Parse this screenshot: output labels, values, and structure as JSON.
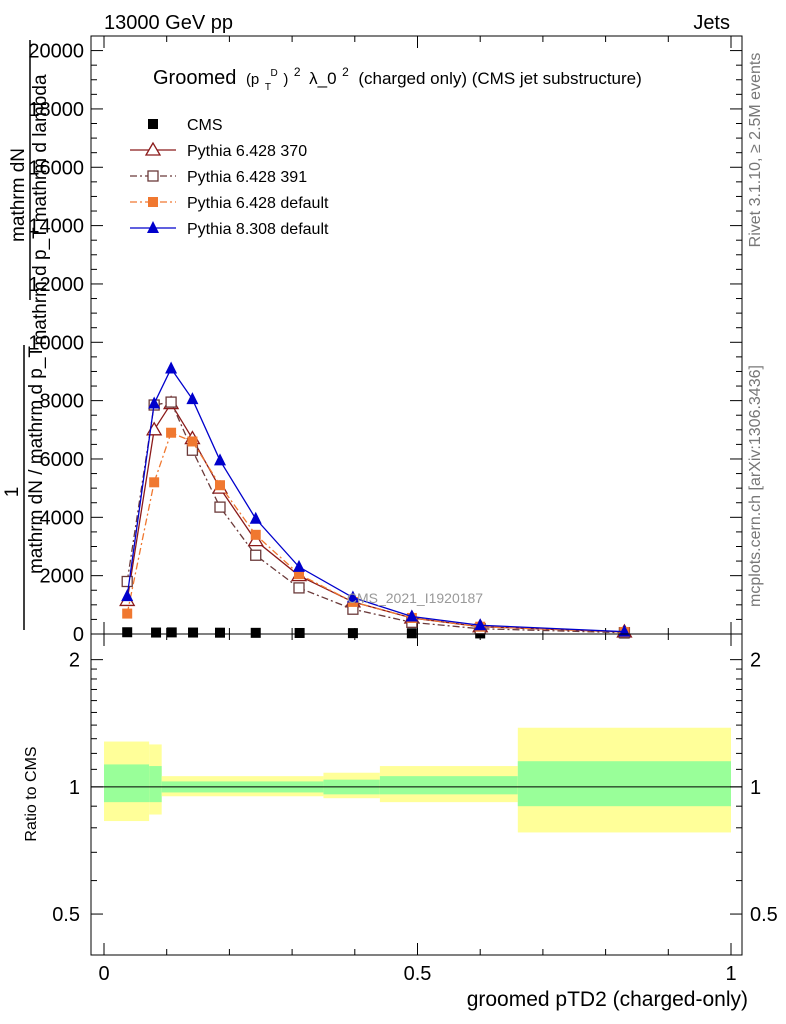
{
  "header": {
    "energy_label": "13000 GeV pp",
    "category_label": "Jets",
    "rivet_label": "Rivet 3.1.10, ≥ 2.5M events",
    "mcplots_label": "mcplots.cern.ch [arXiv:1306.3436]",
    "analysis_id": "CMS_2021_I1920187"
  },
  "chart_data": [
    {
      "type": "line",
      "title": "Groomed (p_T^D)^2 λ_0^2  (charged only) (CMS jet substructure)",
      "title_parts": {
        "lead": "Groomed",
        "p": "(p",
        "sub": "T",
        "sup": "D",
        "close": ")",
        "exp1": "2",
        "lambda": "λ_0",
        "exp2": "2",
        "tail": " (charged only) (CMS jet substructure)"
      },
      "ylabel_lines": [
        "mathrm dN",
        "mathrm d p_T mathrm d lambda",
        "1",
        "mathrm dN / mathrm d p_T"
      ],
      "xlim": [
        0,
        1
      ],
      "ylim": [
        0,
        20500
      ],
      "y_ticks": [
        0,
        2000,
        4000,
        6000,
        8000,
        10000,
        12000,
        14000,
        16000,
        18000,
        20000
      ],
      "y_tick_labels": [
        "0",
        "2000",
        "4000",
        "6000",
        "8000",
        "10000",
        "12000",
        "14000",
        "16000",
        "18000",
        "20000"
      ],
      "legend_position": "top-left",
      "series": [
        {
          "name": "CMS",
          "color": "#000000",
          "marker": "square-filled",
          "line": "none",
          "x": [
            0.037,
            0.083,
            0.108,
            0.142,
            0.185,
            0.242,
            0.312,
            0.397,
            0.491,
            0.6,
            0.83
          ],
          "values": [
            60,
            50,
            55,
            50,
            45,
            40,
            35,
            30,
            25,
            20,
            15
          ]
        },
        {
          "name": "Pythia 6.428 370",
          "color": "#8b1a1a",
          "marker": "triangle-open",
          "line": "solid",
          "x": [
            0.037,
            0.08,
            0.107,
            0.141,
            0.185,
            0.242,
            0.311,
            0.397,
            0.491,
            0.6,
            0.83
          ],
          "values": [
            1150,
            7000,
            7900,
            6700,
            5000,
            3200,
            2000,
            1100,
            550,
            250,
            70
          ]
        },
        {
          "name": "Pythia 6.428 391",
          "color": "#6b3a3a",
          "marker": "square-open",
          "line": "dashdot",
          "x": [
            0.037,
            0.08,
            0.107,
            0.141,
            0.185,
            0.242,
            0.311,
            0.397,
            0.491,
            0.6,
            0.83
          ],
          "values": [
            1800,
            7850,
            7950,
            6300,
            4350,
            2700,
            1580,
            850,
            400,
            180,
            45
          ]
        },
        {
          "name": "Pythia 6.428 default",
          "color": "#f07830",
          "marker": "square-filled",
          "line": "dashdot",
          "x": [
            0.037,
            0.08,
            0.107,
            0.141,
            0.185,
            0.242,
            0.311,
            0.397,
            0.491,
            0.6,
            0.83
          ],
          "values": [
            700,
            5200,
            6900,
            6600,
            5100,
            3400,
            2050,
            1100,
            550,
            250,
            70
          ]
        },
        {
          "name": "Pythia 8.308 default",
          "color": "#0000cc",
          "marker": "triangle-filled",
          "line": "solid",
          "x": [
            0.037,
            0.08,
            0.107,
            0.141,
            0.185,
            0.242,
            0.311,
            0.397,
            0.491,
            0.6,
            0.83
          ],
          "values": [
            1300,
            7900,
            9100,
            8050,
            5950,
            3950,
            2300,
            1250,
            600,
            300,
            80
          ]
        }
      ]
    },
    {
      "type": "area",
      "ylabel": "Ratio to CMS",
      "xlabel": "groomed pTD2 (charged-only)",
      "xlim": [
        0,
        1
      ],
      "ylim": [
        0.4,
        2.3
      ],
      "y_scale": "log",
      "y_ticks": [
        0.5,
        1,
        2
      ],
      "y_tick_labels": [
        "0.5",
        "1",
        "2"
      ],
      "x_ticks": [
        0,
        0.5,
        1
      ],
      "x_tick_labels": [
        "0",
        "0.5",
        "1"
      ],
      "bins": [
        {
          "x0": 0.0,
          "x1": 0.072,
          "stat_lo": 0.92,
          "stat_hi": 1.13,
          "tot_lo": 0.83,
          "tot_hi": 1.28
        },
        {
          "x0": 0.072,
          "x1": 0.092,
          "stat_lo": 0.92,
          "stat_hi": 1.12,
          "tot_lo": 0.86,
          "tot_hi": 1.26
        },
        {
          "x0": 0.092,
          "x1": 0.35,
          "stat_lo": 0.97,
          "stat_hi": 1.03,
          "tot_lo": 0.95,
          "tot_hi": 1.06
        },
        {
          "x0": 0.35,
          "x1": 0.44,
          "stat_lo": 0.96,
          "stat_hi": 1.04,
          "tot_lo": 0.94,
          "tot_hi": 1.08
        },
        {
          "x0": 0.44,
          "x1": 0.66,
          "stat_lo": 0.96,
          "stat_hi": 1.06,
          "tot_lo": 0.92,
          "tot_hi": 1.12
        },
        {
          "x0": 0.66,
          "x1": 1.0,
          "stat_lo": 0.9,
          "stat_hi": 1.15,
          "tot_lo": 0.78,
          "tot_hi": 1.38
        }
      ],
      "reference_line": 1,
      "colors": {
        "stat": "#99ff99",
        "total": "#ffff99",
        "line": "#000000"
      }
    }
  ]
}
